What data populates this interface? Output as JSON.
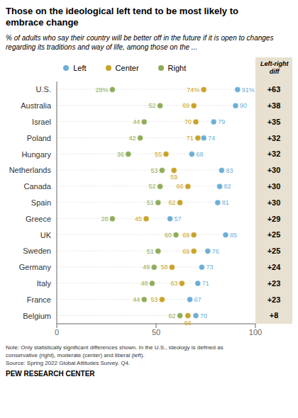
{
  "chart_data": {
    "type": "dot",
    "title": "Those on the ideological left tend to be most likely to\nembrace change",
    "subtitle": "% of adults who say their country will be better off in the future if it is open to changes regarding its traditions and way of life, among those on the ...",
    "orientation": "horizontal",
    "categories": [
      "U.S.",
      "Australia",
      "Israel",
      "Poland",
      "Hungary",
      "Netherlands",
      "Canada",
      "Spain",
      "Greece",
      "UK",
      "Sweden",
      "Germany",
      "Italy",
      "France",
      "Belgium"
    ],
    "series": [
      {
        "name": "Left",
        "color": "#6baed6",
        "values": [
          91,
          90,
          79,
          74,
          68,
          83,
          82,
          81,
          57,
          85,
          76,
          73,
          71,
          67,
          70
        ],
        "value_labels": [
          "91%",
          "90",
          "79",
          "74",
          "68",
          "83",
          "82",
          "81",
          "57",
          "85",
          "76",
          "73",
          "71",
          "67",
          "70"
        ]
      },
      {
        "name": "Center",
        "color": "#c9a227",
        "values": [
          74,
          69,
          70,
          71,
          55,
          59,
          66,
          62,
          45,
          69,
          69,
          58,
          63,
          53,
          66
        ],
        "value_labels": [
          "74%",
          "69",
          "70",
          "71",
          "55",
          "59",
          "66",
          "62",
          "45",
          "69",
          "69",
          "58",
          "63",
          "53",
          "66"
        ]
      },
      {
        "name": "Right",
        "color": "#8fac56",
        "values": [
          28,
          52,
          44,
          42,
          36,
          53,
          52,
          51,
          28,
          60,
          51,
          49,
          48,
          44,
          62
        ],
        "value_labels": [
          "28%",
          "52",
          "44",
          "42",
          "36",
          "53",
          "52",
          "51",
          "28",
          "60",
          "51",
          "49",
          "48",
          "44",
          "62"
        ]
      }
    ],
    "diffs": {
      "name": "Left-right\ndiff",
      "color": "#e8e0d0",
      "values": [
        63,
        38,
        35,
        32,
        32,
        30,
        30,
        30,
        29,
        25,
        25,
        24,
        23,
        23,
        8
      ],
      "value_labels": [
        "+63",
        "+38",
        "+35",
        "+32",
        "+32",
        "+30",
        "+30",
        "+30",
        "+29",
        "+25",
        "+25",
        "+24",
        "+23",
        "+23",
        "+8"
      ]
    },
    "xlim": [
      0,
      100
    ],
    "xticks": [
      0,
      50,
      100
    ],
    "data_labels": true,
    "grid": false,
    "note": "Note: Only statistically significant differences shown. In the U.S., ideology is defined as\nconservative (right), moderate (center) and liberal (left).\nSource: Spring 2022 Global Attitudes Survey. Q4.",
    "source": "PEW RESEARCH CENTER"
  }
}
